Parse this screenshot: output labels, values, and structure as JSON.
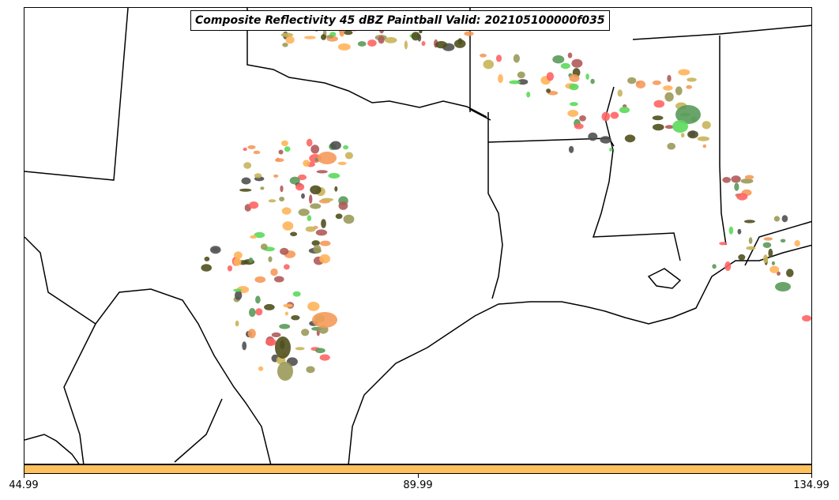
{
  "title": "Composite Reflectivity 45 dBZ Paintball Valid: 202105100000f035",
  "colorbar": {
    "color": "#ffc15e",
    "ticks": [
      {
        "value": 44.99,
        "label": "44.99"
      },
      {
        "value": 89.99,
        "label": "89.99"
      },
      {
        "value": 134.99,
        "label": "134.99"
      }
    ],
    "range": [
      44.99,
      134.99
    ]
  },
  "colors": {
    "border": "#000000",
    "background": "#ffffff",
    "paint": [
      "#b05a5a",
      "#c8b45a",
      "#f59a5a",
      "#5ad95a",
      "#505050",
      "#ff6464",
      "#5a9a5a",
      "#9a9a5a",
      "#ffb45a",
      "#50501e"
    ]
  }
}
